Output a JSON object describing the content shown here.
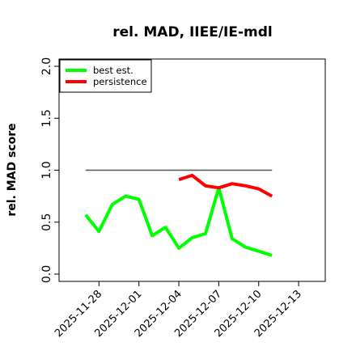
{
  "chart_data": {
    "type": "line",
    "title": "rel. MAD, IIEE/IE-mdl",
    "xlabel": "",
    "ylabel": "rel. MAD score",
    "xlim": [
      "2025-11-25",
      "2025-12-15"
    ],
    "ylim": [
      0.0,
      2.0
    ],
    "yticks": [
      0.0,
      0.5,
      1.0,
      1.5,
      2.0
    ],
    "ytick_labels": [
      "0.0",
      "0.5",
      "1.0",
      "1.5",
      "2.0"
    ],
    "xticks": [
      "2025-11-28",
      "2025-12-01",
      "2025-12-04",
      "2025-12-07",
      "2025-12-10",
      "2025-12-13"
    ],
    "xtick_labels": [
      "2025-11-28",
      "2025-12-01",
      "2025-12-04",
      "2025-12-07",
      "2025-12-10",
      "2025-12-13"
    ],
    "legend": {
      "placement": "top-left",
      "entries": [
        "best est.",
        "persistence"
      ]
    },
    "reference_line": {
      "y": 1.0,
      "x_start": "2025-11-27",
      "x_end": "2025-12-11",
      "color": "#555555"
    },
    "series": [
      {
        "name": "best est.",
        "color": "#00ff00",
        "x": [
          "2025-11-27",
          "2025-11-28",
          "2025-11-29",
          "2025-11-30",
          "2025-12-01",
          "2025-12-02",
          "2025-12-03",
          "2025-12-04",
          "2025-12-05",
          "2025-12-06",
          "2025-12-07",
          "2025-12-08",
          "2025-12-09",
          "2025-12-10",
          "2025-12-11"
        ],
        "values": [
          0.57,
          0.41,
          0.67,
          0.75,
          0.72,
          0.37,
          0.45,
          0.25,
          0.35,
          0.39,
          0.83,
          0.34,
          0.26,
          0.22,
          0.18
        ]
      },
      {
        "name": "persistence",
        "color": "#ff0000",
        "x": [
          "2025-12-04",
          "2025-12-05",
          "2025-12-06",
          "2025-12-07",
          "2025-12-08",
          "2025-12-09",
          "2025-12-10",
          "2025-12-11"
        ],
        "values": [
          0.91,
          0.95,
          0.85,
          0.83,
          0.87,
          0.85,
          0.82,
          0.75
        ]
      }
    ]
  }
}
